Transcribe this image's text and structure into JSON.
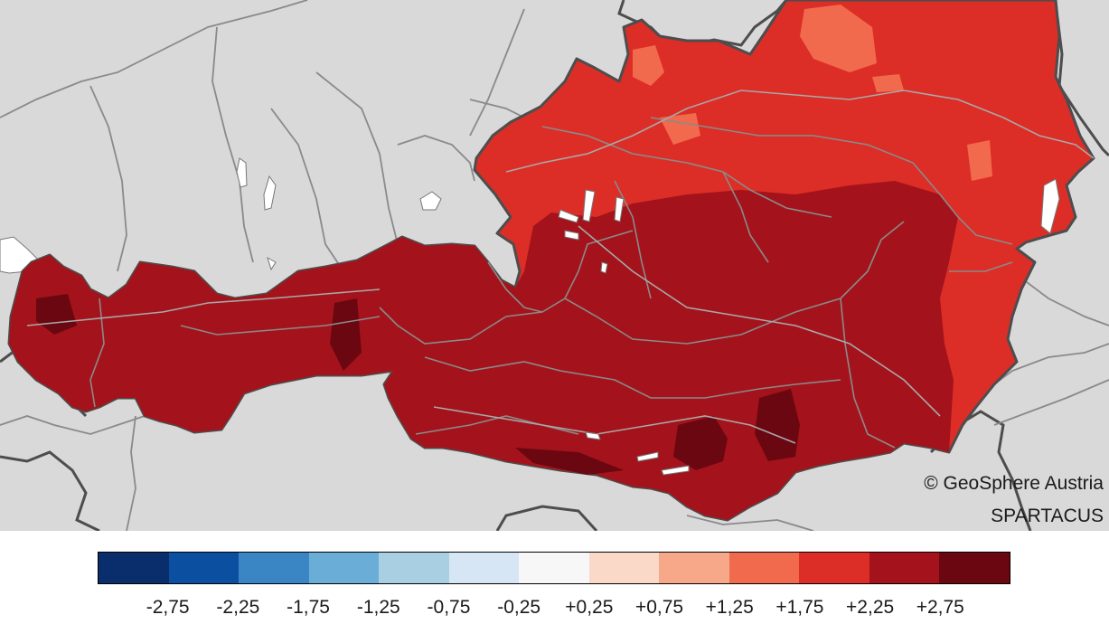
{
  "map": {
    "colors": {
      "background": "#d9d9d9",
      "border": "#4d4d4d",
      "rivers": "#8a8a8a",
      "lakes": "#ffffff"
    },
    "credit": {
      "line1": "© GeoSphere Austria",
      "line2": "SPARTACUS"
    }
  },
  "legend": {
    "colors": [
      "#0a2d6b",
      "#0b4fa0",
      "#3a86c4",
      "#6aaed8",
      "#a9cfe3",
      "#d6e6f4",
      "#f7f7f7",
      "#fbd9c8",
      "#f7a889",
      "#f26a4d",
      "#dc2e27",
      "#a4131b",
      "#6b0711"
    ],
    "labels": [
      "-2,75",
      "-2,25",
      "-1,75",
      "-1,25",
      "-0,75",
      "-0,25",
      "+0,25",
      "+0,75",
      "+1,25",
      "+1,75",
      "+2,25",
      "+2,75"
    ]
  }
}
